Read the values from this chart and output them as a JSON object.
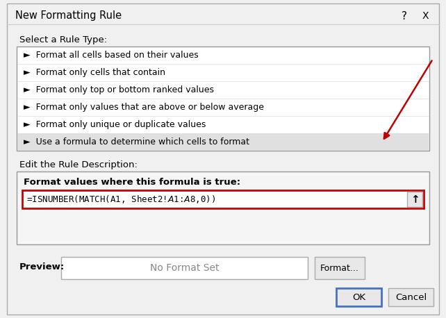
{
  "title": "New Formatting Rule",
  "bg_color": "#f0f0f0",
  "rule_type_label": "Select a Rule Type:",
  "rule_items": [
    "►  Format all cells based on their values",
    "►  Format only cells that contain",
    "►  Format only top or bottom ranked values",
    "►  Format only values that are above or below average",
    "►  Format only unique or duplicate values",
    "►  Use a formula to determine which cells to format"
  ],
  "selected_index": 5,
  "selected_bg": "#e0e0e0",
  "edit_label": "Edit the Rule Description:",
  "formula_label": "Format values where this formula is true:",
  "formula_text": "=ISNUMBER(MATCH(A1, Sheet2!$A$1:$A$8,0))",
  "preview_label": "Preview:",
  "preview_text": "No Format Set",
  "ok_text": "OK",
  "cancel_text": "Cancel",
  "format_text": "Format...",
  "arrow_color": "#c00000",
  "formula_border_color": "#cc0000",
  "ok_border_color": "#4472c4",
  "text_color": "#000000",
  "list_border": "#999999",
  "section_border": "#aaaaaa"
}
